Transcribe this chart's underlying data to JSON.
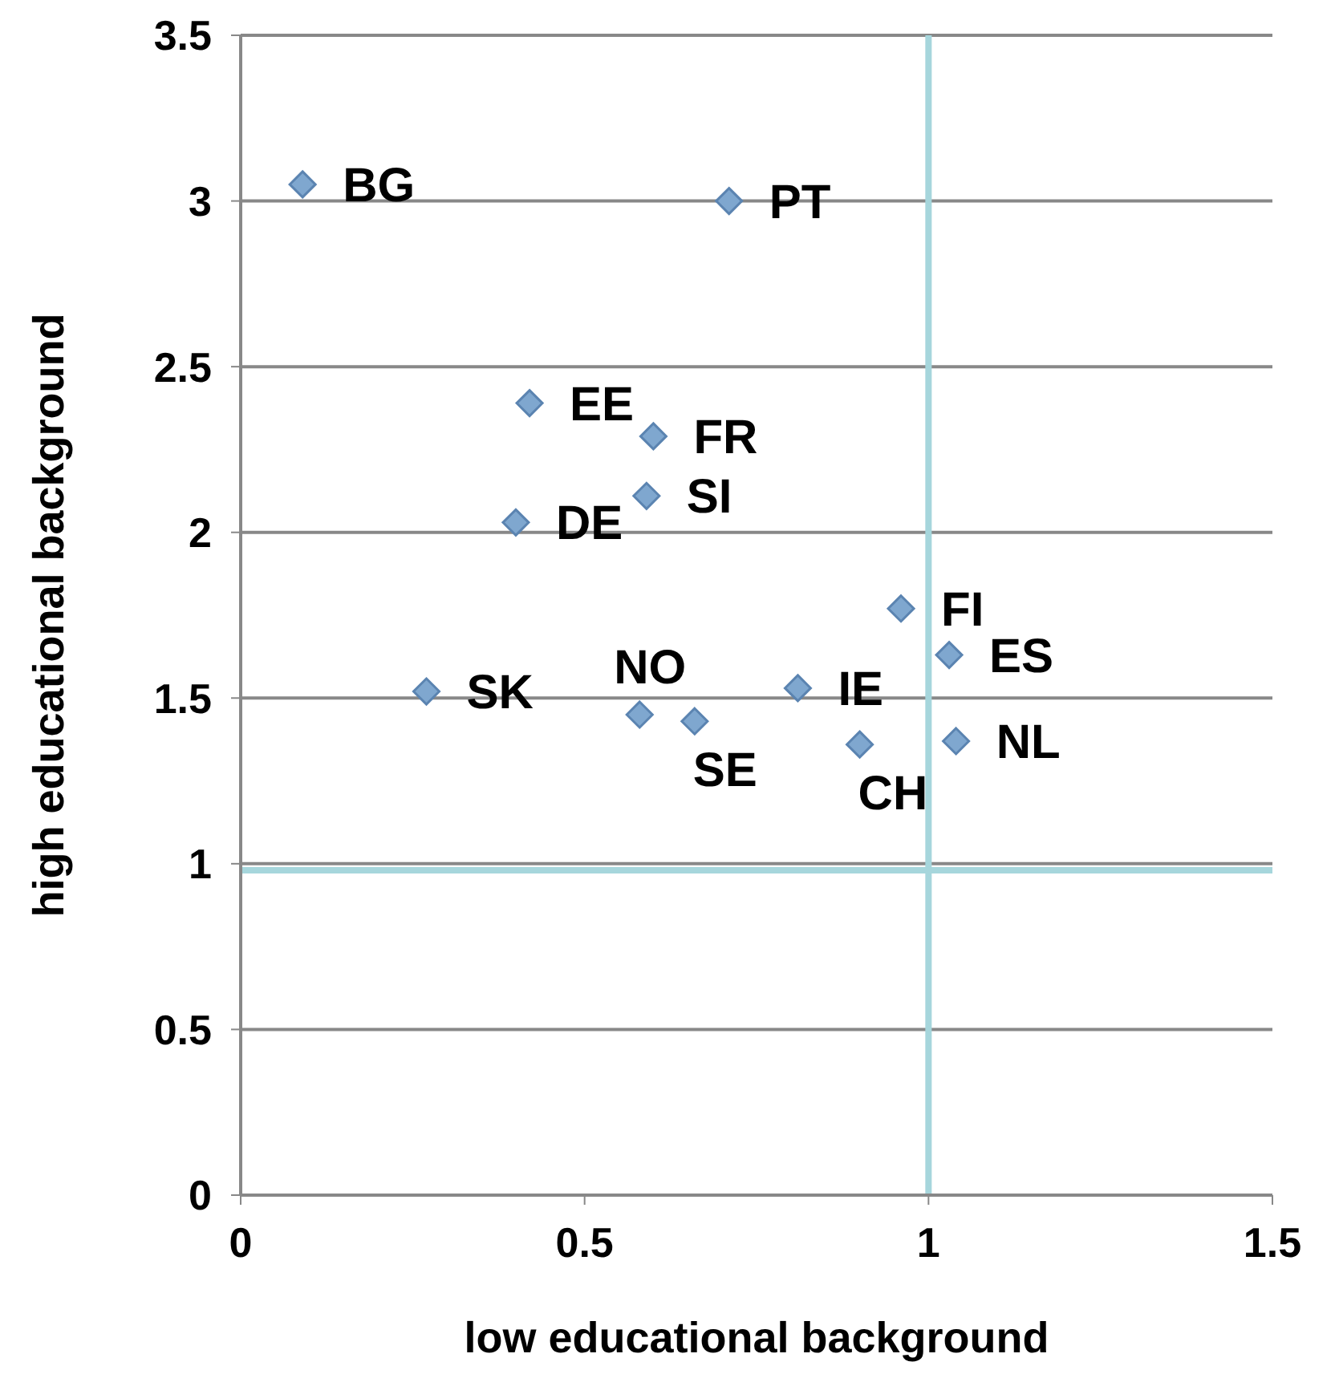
{
  "chart_data": {
    "type": "scatter",
    "xlabel": "low educational background",
    "ylabel": "high educational background",
    "x": [
      0.09,
      0.71,
      0.42,
      0.6,
      0.59,
      0.4,
      0.96,
      1.03,
      0.27,
      0.81,
      0.58,
      0.66,
      0.9,
      1.04
    ],
    "series": [
      {
        "color": "#7fa7cf",
        "values": [
          3.05,
          3.0,
          2.39,
          2.29,
          2.11,
          2.03,
          1.77,
          1.63,
          1.52,
          1.53,
          1.45,
          1.43,
          1.36,
          1.37
        ]
      }
    ],
    "xlim": [
      0,
      1.5
    ],
    "xticks": [
      0,
      0.5,
      1,
      1.5
    ],
    "ylim": [
      0,
      3.5
    ],
    "yticks": [
      0,
      0.5,
      1,
      1.5,
      2,
      2.5,
      3,
      3.5
    ],
    "grid": "y",
    "marker": "diamond",
    "legend": false,
    "ref_lines": [
      {
        "axis": "x",
        "value": 1,
        "color": "#a6d6dc"
      },
      {
        "axis": "y",
        "value": 0.98,
        "color": "#a6d6dc"
      }
    ],
    "annotations": [
      {
        "text": "BG",
        "x": 0.09,
        "y": 3.05
      },
      {
        "text": "PT",
        "x": 0.71,
        "y": 3.0
      },
      {
        "text": "EE",
        "x": 0.42,
        "y": 2.39
      },
      {
        "text": "FR",
        "x": 0.6,
        "y": 2.29
      },
      {
        "text": "SI",
        "x": 0.59,
        "y": 2.11
      },
      {
        "text": "DE",
        "x": 0.4,
        "y": 2.03
      },
      {
        "text": "FI",
        "x": 0.96,
        "y": 1.77
      },
      {
        "text": "ES",
        "x": 1.03,
        "y": 1.63
      },
      {
        "text": "SK",
        "x": 0.27,
        "y": 1.52
      },
      {
        "text": "NO",
        "x": 0.58,
        "y": 1.45
      },
      {
        "text": "IE",
        "x": 0.81,
        "y": 1.53
      },
      {
        "text": "SE",
        "x": 0.66,
        "y": 1.43
      },
      {
        "text": "CH",
        "x": 0.9,
        "y": 1.36
      },
      {
        "text": "NL",
        "x": 1.04,
        "y": 1.37
      }
    ]
  }
}
